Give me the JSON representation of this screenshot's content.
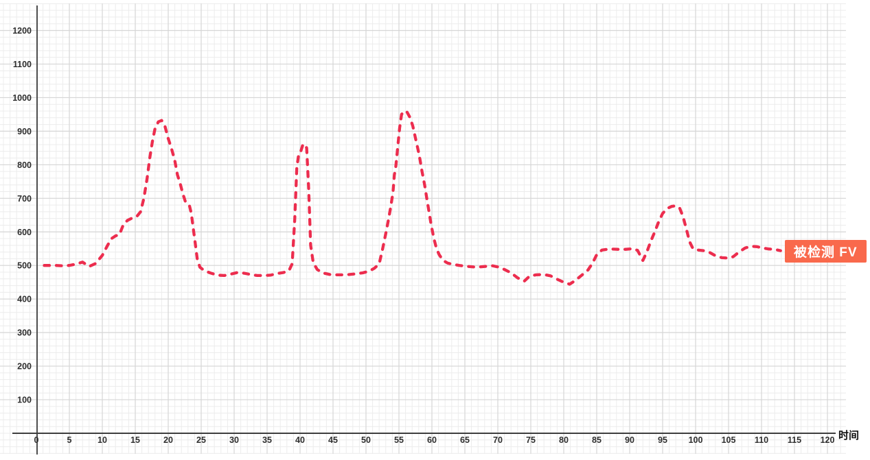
{
  "style": {
    "line_color": "#ec2d4e",
    "label_bg": "#f9694c",
    "label_text": "#ffffff",
    "axis_color": "#3d3d3d",
    "grid_minor": "#ececec",
    "grid_major": "#d6d6d6",
    "tick_text": "#2e2e2e",
    "background": "#ffffff"
  },
  "chart_data": {
    "type": "line",
    "title": "",
    "xlabel": "时间",
    "ylabel": "",
    "xlim": [
      0,
      122
    ],
    "ylim": [
      0,
      1250
    ],
    "grid": true,
    "legend_position": "right",
    "line_style": "dashed",
    "x_ticks": [
      0,
      5,
      10,
      15,
      20,
      25,
      30,
      35,
      40,
      45,
      50,
      55,
      60,
      65,
      70,
      75,
      80,
      85,
      90,
      95,
      100,
      105,
      110,
      115,
      120
    ],
    "y_ticks": [
      100,
      200,
      300,
      400,
      500,
      600,
      700,
      800,
      900,
      1000,
      1100,
      1200
    ],
    "series": [
      {
        "name": "被检测 FV",
        "color": "#ec2d4e",
        "style": "dashed",
        "points": [
          [
            1.2,
            500
          ],
          [
            2,
            500
          ],
          [
            3,
            500
          ],
          [
            4,
            499
          ],
          [
            5,
            500
          ],
          [
            6,
            504
          ],
          [
            7,
            510
          ],
          [
            8,
            497
          ],
          [
            9,
            506
          ],
          [
            10,
            530
          ],
          [
            10.8,
            560
          ],
          [
            11.4,
            580
          ],
          [
            12,
            588
          ],
          [
            12.6,
            592
          ],
          [
            13.2,
            622
          ],
          [
            13.8,
            634
          ],
          [
            14.5,
            641
          ],
          [
            15.2,
            645
          ],
          [
            15.8,
            660
          ],
          [
            16.3,
            700
          ],
          [
            16.8,
            760
          ],
          [
            17.2,
            820
          ],
          [
            17.6,
            870
          ],
          [
            18,
            908
          ],
          [
            18.5,
            928
          ],
          [
            19,
            932
          ],
          [
            19.5,
            915
          ],
          [
            20,
            878
          ],
          [
            20.5,
            848
          ],
          [
            21,
            812
          ],
          [
            21.4,
            770
          ],
          [
            21.8,
            745
          ],
          [
            22.2,
            715
          ],
          [
            22.6,
            690
          ],
          [
            23.2,
            680
          ],
          [
            23.5,
            655
          ],
          [
            23.8,
            610
          ],
          [
            24.1,
            565
          ],
          [
            24.4,
            520
          ],
          [
            24.8,
            495
          ],
          [
            25.5,
            484
          ],
          [
            26.5,
            477
          ],
          [
            27.5,
            471
          ],
          [
            28.5,
            470
          ],
          [
            29.5,
            474
          ],
          [
            30.5,
            479
          ],
          [
            31.5,
            477
          ],
          [
            32.5,
            473
          ],
          [
            33.5,
            470
          ],
          [
            34.5,
            470
          ],
          [
            35.5,
            471
          ],
          [
            36.5,
            476
          ],
          [
            37.5,
            479
          ],
          [
            38.3,
            484
          ],
          [
            38.8,
            505
          ],
          [
            39.2,
            640
          ],
          [
            39.5,
            790
          ],
          [
            39.8,
            833
          ],
          [
            40.1,
            840
          ],
          [
            40.4,
            858
          ],
          [
            40.7,
            862
          ],
          [
            41,
            850
          ],
          [
            41.3,
            730
          ],
          [
            41.6,
            560
          ],
          [
            42,
            508
          ],
          [
            42.6,
            488
          ],
          [
            43.4,
            478
          ],
          [
            44.5,
            473
          ],
          [
            45.5,
            472
          ],
          [
            46.5,
            472
          ],
          [
            47.5,
            473
          ],
          [
            48.5,
            475
          ],
          [
            49.5,
            478
          ],
          [
            50.5,
            483
          ],
          [
            51.3,
            492
          ],
          [
            52,
            505
          ],
          [
            52.5,
            547
          ],
          [
            53,
            595
          ],
          [
            53.4,
            635
          ],
          [
            53.8,
            680
          ],
          [
            54.1,
            720
          ],
          [
            54.3,
            770
          ],
          [
            54.5,
            790
          ],
          [
            54.8,
            850
          ],
          [
            55.1,
            910
          ],
          [
            55.4,
            950
          ],
          [
            55.8,
            960
          ],
          [
            56.2,
            958
          ],
          [
            56.7,
            940
          ],
          [
            57.1,
            915
          ],
          [
            57.5,
            880
          ],
          [
            57.9,
            845
          ],
          [
            58.2,
            815
          ],
          [
            58.5,
            780
          ],
          [
            58.9,
            740
          ],
          [
            59.3,
            690
          ],
          [
            59.6,
            655
          ],
          [
            59.9,
            620
          ],
          [
            60.3,
            580
          ],
          [
            60.7,
            550
          ],
          [
            61.1,
            532
          ],
          [
            61.7,
            515
          ],
          [
            62.4,
            507
          ],
          [
            63.2,
            503
          ],
          [
            64.2,
            500
          ],
          [
            65.5,
            497
          ],
          [
            66.8,
            495
          ],
          [
            68,
            497
          ],
          [
            69.2,
            499
          ],
          [
            70.2,
            495
          ],
          [
            71,
            488
          ],
          [
            72,
            478
          ],
          [
            73,
            463
          ],
          [
            74,
            453
          ],
          [
            74.8,
            468
          ],
          [
            75.8,
            472
          ],
          [
            77,
            473
          ],
          [
            78,
            469
          ],
          [
            79,
            459
          ],
          [
            80,
            450
          ],
          [
            80.9,
            444
          ],
          [
            81.8,
            456
          ],
          [
            82.8,
            472
          ],
          [
            83.7,
            487
          ],
          [
            84.4,
            508
          ],
          [
            85,
            532
          ],
          [
            85.8,
            546
          ],
          [
            87,
            549
          ],
          [
            88.2,
            548
          ],
          [
            89.4,
            548
          ],
          [
            90.5,
            550
          ],
          [
            91.2,
            545
          ],
          [
            92,
            515
          ],
          [
            92.6,
            540
          ],
          [
            93.2,
            572
          ],
          [
            93.8,
            600
          ],
          [
            94.4,
            630
          ],
          [
            95,
            655
          ],
          [
            95.7,
            670
          ],
          [
            96.4,
            676
          ],
          [
            97,
            678
          ],
          [
            97.6,
            670
          ],
          [
            98.1,
            645
          ],
          [
            98.6,
            608
          ],
          [
            99.1,
            570
          ],
          [
            99.6,
            550
          ],
          [
            100.4,
            546
          ],
          [
            101.3,
            544
          ],
          [
            102.2,
            538
          ],
          [
            103.1,
            528
          ],
          [
            104,
            523
          ],
          [
            104.8,
            522
          ],
          [
            105.7,
            526
          ],
          [
            106.6,
            540
          ],
          [
            107.5,
            552
          ],
          [
            108.4,
            557
          ],
          [
            109.3,
            556
          ],
          [
            110.2,
            552
          ],
          [
            111.1,
            549
          ],
          [
            112,
            548
          ],
          [
            112.9,
            544
          ]
        ]
      }
    ]
  }
}
